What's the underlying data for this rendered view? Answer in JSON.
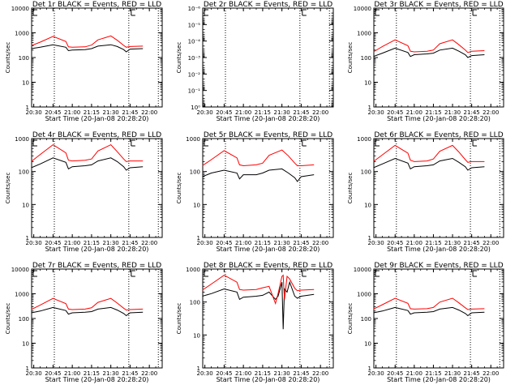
{
  "figure": {
    "xlabel": "Start Time (20-Jan-08 20:28:20)",
    "ylabel": "Counts/sec"
  },
  "chart_data": [
    {
      "type": "line",
      "title": "Det 1r BLACK = Events, RED = LLD",
      "xlabel": "Start Time (20-Jan-08 20:28:20)",
      "ylabel": "Counts/sec",
      "yscale": "log",
      "ylim": [
        1,
        10000
      ],
      "yticks": [
        "1",
        "10",
        "100",
        "1000",
        "10000"
      ],
      "xticks": [
        "20:30",
        "20:45",
        "21:00",
        "21:15",
        "21:30",
        "21:45",
        "22:00"
      ],
      "xlim": [
        "20:28:20",
        "22:10"
      ],
      "vlines": [
        "20:46",
        "21:44",
        "22:07"
      ],
      "series": [
        {
          "name": "Events",
          "color": "#000000",
          "x": [
            "20:28",
            "20:35",
            "20:45",
            "20:55",
            "20:57",
            "21:00",
            "21:10",
            "21:15",
            "21:20",
            "21:30",
            "21:35",
            "21:40",
            "21:42",
            "21:45",
            "21:55"
          ],
          "values": [
            230,
            260,
            330,
            260,
            190,
            200,
            210,
            230,
            290,
            330,
            280,
            210,
            170,
            220,
            230
          ]
        },
        {
          "name": "LLD",
          "color": "#ff0000",
          "x": [
            "20:28",
            "20:35",
            "20:45",
            "20:55",
            "20:57",
            "21:00",
            "21:10",
            "21:15",
            "21:20",
            "21:30",
            "21:35",
            "21:40",
            "21:42",
            "21:45",
            "21:55"
          ],
          "values": [
            300,
            420,
            720,
            450,
            270,
            260,
            270,
            320,
            520,
            750,
            500,
            310,
            260,
            280,
            290
          ]
        }
      ]
    },
    {
      "type": "line",
      "title": "Det 2r BLACK = Events, RED = LLD",
      "xlabel": "Start Time (20-Jan-08 20:28:20)",
      "ylabel": "Counts/sec",
      "yscale": "log",
      "ylim": [
        1,
        1e-06
      ],
      "yticks": [
        "10⁰",
        "10⁻¹",
        "10⁻²",
        "10⁻³",
        "10⁻⁴",
        "10⁻⁵",
        "10⁻⁶"
      ],
      "xticks": [
        "20:30",
        "20:45",
        "21:00",
        "21:15",
        "21:30",
        "21:45",
        "22:00"
      ],
      "xlim": [
        "20:28:20",
        "22:10"
      ],
      "vlines": [
        "20:46",
        "21:44",
        "22:07"
      ],
      "series": []
    },
    {
      "type": "line",
      "title": "Det 3r BLACK = Events, RED = LLD",
      "xlabel": "Start Time (20-Jan-08 20:28:20)",
      "ylabel": "Counts/sec",
      "yscale": "log",
      "ylim": [
        1,
        10000
      ],
      "yticks": [
        "1",
        "10",
        "100",
        "1000",
        "10000"
      ],
      "xticks": [
        "20:30",
        "20:45",
        "21:00",
        "21:15",
        "21:30",
        "21:45",
        "22:00"
      ],
      "xlim": [
        "20:28:20",
        "22:10"
      ],
      "vlines": [
        "20:46",
        "21:44",
        "22:07"
      ],
      "series": [
        {
          "name": "Events",
          "color": "#000000",
          "x": [
            "20:28",
            "20:35",
            "20:45",
            "20:55",
            "20:57",
            "21:00",
            "21:10",
            "21:15",
            "21:20",
            "21:30",
            "21:35",
            "21:40",
            "21:42",
            "21:45",
            "21:55"
          ],
          "values": [
            110,
            150,
            240,
            160,
            110,
            130,
            140,
            150,
            200,
            240,
            180,
            130,
            100,
            120,
            130
          ]
        },
        {
          "name": "LLD",
          "color": "#ff0000",
          "x": [
            "20:28",
            "20:35",
            "20:45",
            "20:55",
            "20:57",
            "21:00",
            "21:10",
            "21:15",
            "21:20",
            "21:30",
            "21:35",
            "21:40",
            "21:42",
            "21:45",
            "21:55"
          ],
          "values": [
            170,
            280,
            520,
            300,
            180,
            170,
            180,
            200,
            360,
            520,
            330,
            200,
            160,
            180,
            190
          ]
        }
      ]
    },
    {
      "type": "line",
      "title": "Det 4r BLACK = Events, RED = LLD",
      "xlabel": "Start Time (20-Jan-08 20:28:20)",
      "ylabel": "Counts/sec",
      "yscale": "log",
      "ylim": [
        1,
        1000
      ],
      "yticks": [
        "1",
        "10",
        "100",
        "1000"
      ],
      "xticks": [
        "20:30",
        "20:45",
        "21:00",
        "21:15",
        "21:30",
        "21:45",
        "22:00"
      ],
      "xlim": [
        "20:28:20",
        "22:10"
      ],
      "vlines": [
        "20:46",
        "21:44",
        "22:07"
      ],
      "series": [
        {
          "name": "Events",
          "color": "#000000",
          "x": [
            "20:28",
            "20:35",
            "20:45",
            "20:55",
            "20:57",
            "21:00",
            "21:10",
            "21:15",
            "21:20",
            "21:30",
            "21:35",
            "21:40",
            "21:42",
            "21:45",
            "21:55"
          ],
          "values": [
            130,
            170,
            260,
            190,
            120,
            140,
            150,
            160,
            210,
            260,
            200,
            140,
            110,
            130,
            140
          ]
        },
        {
          "name": "LLD",
          "color": "#ff0000",
          "x": [
            "20:28",
            "20:35",
            "20:45",
            "20:55",
            "20:57",
            "21:00",
            "21:10",
            "21:15",
            "21:20",
            "21:30",
            "21:35",
            "21:40",
            "21:42",
            "21:45",
            "21:55"
          ],
          "values": [
            200,
            330,
            650,
            370,
            220,
            210,
            220,
            240,
            420,
            650,
            400,
            240,
            200,
            210,
            210
          ]
        }
      ]
    },
    {
      "type": "line",
      "title": "Det 5r BLACK = Events, RED = LLD",
      "xlabel": "Start Time (20-Jan-08 20:28:20)",
      "ylabel": "Counts/sec",
      "yscale": "log",
      "ylim": [
        1,
        1000
      ],
      "yticks": [
        "1",
        "10",
        "100",
        "1000"
      ],
      "xticks": [
        "20:30",
        "20:45",
        "21:00",
        "21:15",
        "21:30",
        "21:45",
        "22:00"
      ],
      "xlim": [
        "20:28:20",
        "22:10"
      ],
      "vlines": [
        "20:46",
        "21:44",
        "22:07"
      ],
      "series": [
        {
          "name": "Events",
          "color": "#000000",
          "x": [
            "20:28",
            "20:35",
            "20:45",
            "20:55",
            "20:57",
            "21:00",
            "21:10",
            "21:15",
            "21:20",
            "21:30",
            "21:35",
            "21:40",
            "21:42",
            "21:45",
            "21:55"
          ],
          "values": [
            70,
            90,
            110,
            90,
            60,
            80,
            80,
            90,
            110,
            120,
            90,
            65,
            50,
            70,
            80
          ]
        },
        {
          "name": "LLD",
          "color": "#ff0000",
          "x": [
            "20:28",
            "20:35",
            "20:45",
            "20:55",
            "20:57",
            "21:00",
            "21:10",
            "21:15",
            "21:20",
            "21:30",
            "21:35",
            "21:40",
            "21:42",
            "21:45",
            "21:55"
          ],
          "values": [
            150,
            230,
            430,
            260,
            160,
            150,
            160,
            180,
            310,
            450,
            300,
            180,
            150,
            150,
            160
          ]
        }
      ]
    },
    {
      "type": "line",
      "title": "Det 6r BLACK = Events, RED = LLD",
      "xlabel": "Start Time (20-Jan-08 20:28:20)",
      "ylabel": "Counts/sec",
      "yscale": "log",
      "ylim": [
        1,
        1000
      ],
      "yticks": [
        "1",
        "10",
        "100",
        "1000"
      ],
      "xticks": [
        "20:30",
        "20:45",
        "21:00",
        "21:15",
        "21:30",
        "21:45",
        "22:00"
      ],
      "xlim": [
        "20:28:20",
        "22:10"
      ],
      "vlines": [
        "20:46",
        "21:44",
        "22:07"
      ],
      "series": [
        {
          "name": "Events",
          "color": "#000000",
          "x": [
            "20:28",
            "20:35",
            "20:45",
            "20:55",
            "20:57",
            "21:00",
            "21:10",
            "21:15",
            "21:20",
            "21:30",
            "21:35",
            "21:40",
            "21:42",
            "21:45",
            "21:55"
          ],
          "values": [
            130,
            170,
            250,
            180,
            120,
            140,
            150,
            160,
            210,
            250,
            190,
            140,
            110,
            130,
            140
          ]
        },
        {
          "name": "LLD",
          "color": "#ff0000",
          "x": [
            "20:28",
            "20:35",
            "20:45",
            "20:55",
            "20:57",
            "21:00",
            "21:10",
            "21:15",
            "21:20",
            "21:30",
            "21:35",
            "21:40",
            "21:42",
            "21:45",
            "21:55"
          ],
          "values": [
            200,
            320,
            620,
            360,
            220,
            200,
            210,
            240,
            410,
            620,
            390,
            230,
            190,
            200,
            200
          ]
        }
      ]
    },
    {
      "type": "line",
      "title": "Det 7r BLACK = Events, RED = LLD",
      "xlabel": "Start Time (20-Jan-08 20:28:20)",
      "ylabel": "Counts/sec",
      "yscale": "log",
      "ylim": [
        1,
        10000
      ],
      "yticks": [
        "1",
        "10",
        "100",
        "1000",
        "10000"
      ],
      "xticks": [
        "20:30",
        "20:45",
        "21:00",
        "21:15",
        "21:30",
        "21:45",
        "22:00"
      ],
      "xlim": [
        "20:28:20",
        "22:10"
      ],
      "vlines": [
        "20:46",
        "21:44",
        "22:07"
      ],
      "series": [
        {
          "name": "Events",
          "color": "#000000",
          "x": [
            "20:28",
            "20:35",
            "20:45",
            "20:55",
            "20:57",
            "21:00",
            "21:10",
            "21:15",
            "21:20",
            "21:30",
            "21:35",
            "21:40",
            "21:42",
            "21:45",
            "21:55"
          ],
          "values": [
            170,
            200,
            280,
            210,
            150,
            170,
            180,
            190,
            240,
            280,
            220,
            160,
            130,
            170,
            180
          ]
        },
        {
          "name": "LLD",
          "color": "#ff0000",
          "x": [
            "20:28",
            "20:35",
            "20:45",
            "20:55",
            "20:57",
            "21:00",
            "21:10",
            "21:15",
            "21:20",
            "21:30",
            "21:35",
            "21:40",
            "21:42",
            "21:45",
            "21:55"
          ],
          "values": [
            230,
            350,
            650,
            400,
            240,
            230,
            240,
            270,
            450,
            650,
            420,
            260,
            220,
            230,
            240
          ]
        }
      ]
    },
    {
      "type": "line",
      "title": "Det 8r BLACK = Events, RED = LLD",
      "xlabel": "Start Time (20-Jan-08 20:28:20)",
      "ylabel": "Counts/sec",
      "yscale": "log",
      "ylim": [
        1,
        1000
      ],
      "yticks": [
        "1",
        "10",
        "100",
        "1000"
      ],
      "xticks": [
        "20:30",
        "20:45",
        "21:00",
        "21:15",
        "21:30",
        "21:45",
        "22:00"
      ],
      "xlim": [
        "20:28:20",
        "22:10"
      ],
      "vlines": [
        "20:46",
        "21:44",
        "22:07"
      ],
      "series": [
        {
          "name": "Events",
          "color": "#000000",
          "x": [
            "20:28",
            "20:35",
            "20:45",
            "20:55",
            "20:57",
            "21:00",
            "21:10",
            "21:15",
            "21:20",
            "21:25",
            "21:27",
            "21:30",
            "21:31",
            "21:32",
            "21:34",
            "21:36",
            "21:40",
            "21:42",
            "21:45",
            "21:55"
          ],
          "values": [
            150,
            180,
            250,
            200,
            120,
            140,
            150,
            160,
            200,
            120,
            150,
            400,
            15,
            250,
            200,
            400,
            150,
            130,
            150,
            170
          ]
        },
        {
          "name": "LLD",
          "color": "#ff0000",
          "x": [
            "20:28",
            "20:35",
            "20:45",
            "20:55",
            "20:57",
            "21:00",
            "21:10",
            "21:15",
            "21:20",
            "21:25",
            "21:27",
            "21:30",
            "21:31",
            "21:32",
            "21:34",
            "21:36",
            "21:40",
            "21:42",
            "21:45",
            "21:55"
          ],
          "values": [
            230,
            350,
            650,
            400,
            240,
            230,
            240,
            270,
            300,
            90,
            180,
            600,
            650,
            120,
            600,
            500,
            260,
            220,
            230,
            240
          ]
        }
      ]
    },
    {
      "type": "line",
      "title": "Det 9r BLACK = Events, RED = LLD",
      "xlabel": "Start Time (20-Jan-08 20:28:20)",
      "ylabel": "Counts/sec",
      "yscale": "log",
      "ylim": [
        1,
        10000
      ],
      "yticks": [
        "1",
        "10",
        "100",
        "1000",
        "10000"
      ],
      "xticks": [
        "20:30",
        "20:45",
        "21:00",
        "21:15",
        "21:30",
        "21:45",
        "22:00"
      ],
      "xlim": [
        "20:28:20",
        "22:10"
      ],
      "vlines": [
        "20:46",
        "21:44",
        "22:07"
      ],
      "series": [
        {
          "name": "Events",
          "color": "#000000",
          "x": [
            "20:28",
            "20:35",
            "20:45",
            "20:55",
            "20:57",
            "21:00",
            "21:10",
            "21:15",
            "21:20",
            "21:30",
            "21:35",
            "21:40",
            "21:42",
            "21:45",
            "21:55"
          ],
          "values": [
            170,
            200,
            280,
            210,
            150,
            170,
            180,
            190,
            240,
            280,
            220,
            160,
            130,
            170,
            180
          ]
        },
        {
          "name": "LLD",
          "color": "#ff0000",
          "x": [
            "20:28",
            "20:35",
            "20:45",
            "20:55",
            "20:57",
            "21:00",
            "21:10",
            "21:15",
            "21:20",
            "21:30",
            "21:35",
            "21:40",
            "21:42",
            "21:45",
            "21:55"
          ],
          "values": [
            240,
            360,
            660,
            410,
            250,
            240,
            250,
            280,
            460,
            660,
            430,
            270,
            230,
            240,
            250
          ]
        }
      ]
    }
  ]
}
